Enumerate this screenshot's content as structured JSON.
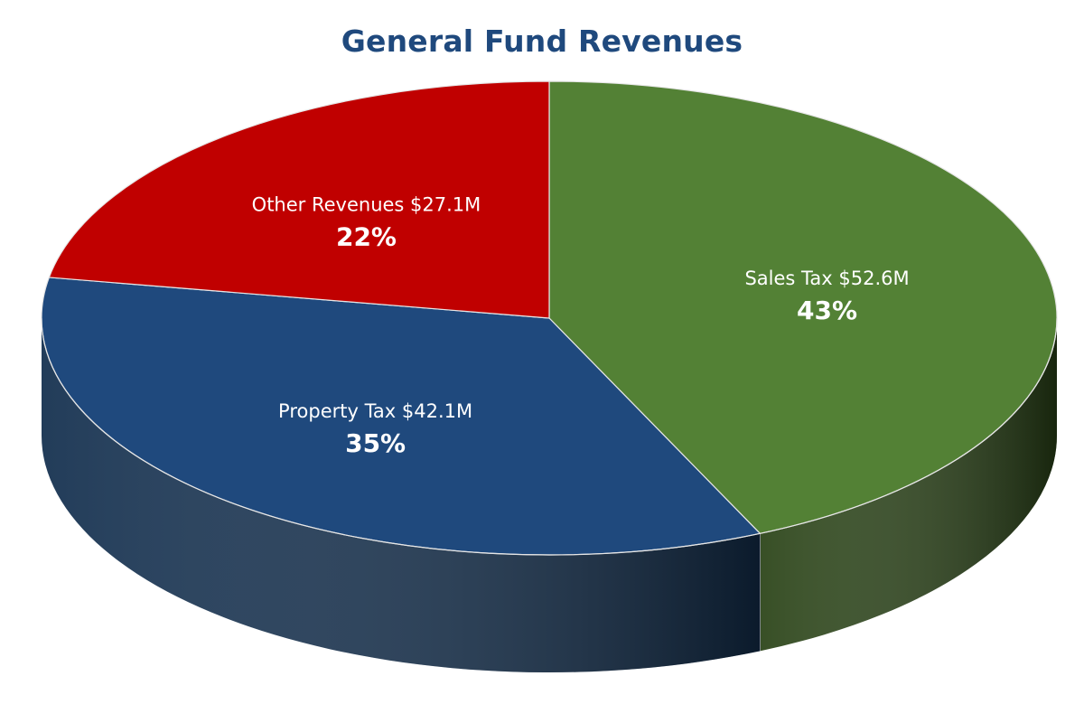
{
  "chart_data": {
    "type": "pie",
    "title": "General Fund Revenues",
    "slices": [
      {
        "name": "Sales Tax",
        "amount_label": "$52.6M",
        "value": 52.6,
        "percent": 43,
        "percent_label": "43%",
        "color": "#538135",
        "side_color": "#2b4418"
      },
      {
        "name": "Property Tax",
        "amount_label": "$42.1M",
        "value": 42.1,
        "percent": 35,
        "percent_label": "35%",
        "color": "#1f497d",
        "side_color": "#14304f"
      },
      {
        "name": "Other Revenues",
        "amount_label": "$27.1M",
        "value": 27.1,
        "percent": 22,
        "percent_label": "22%",
        "color": "#c00000",
        "side_color": "#7a0000"
      }
    ]
  }
}
